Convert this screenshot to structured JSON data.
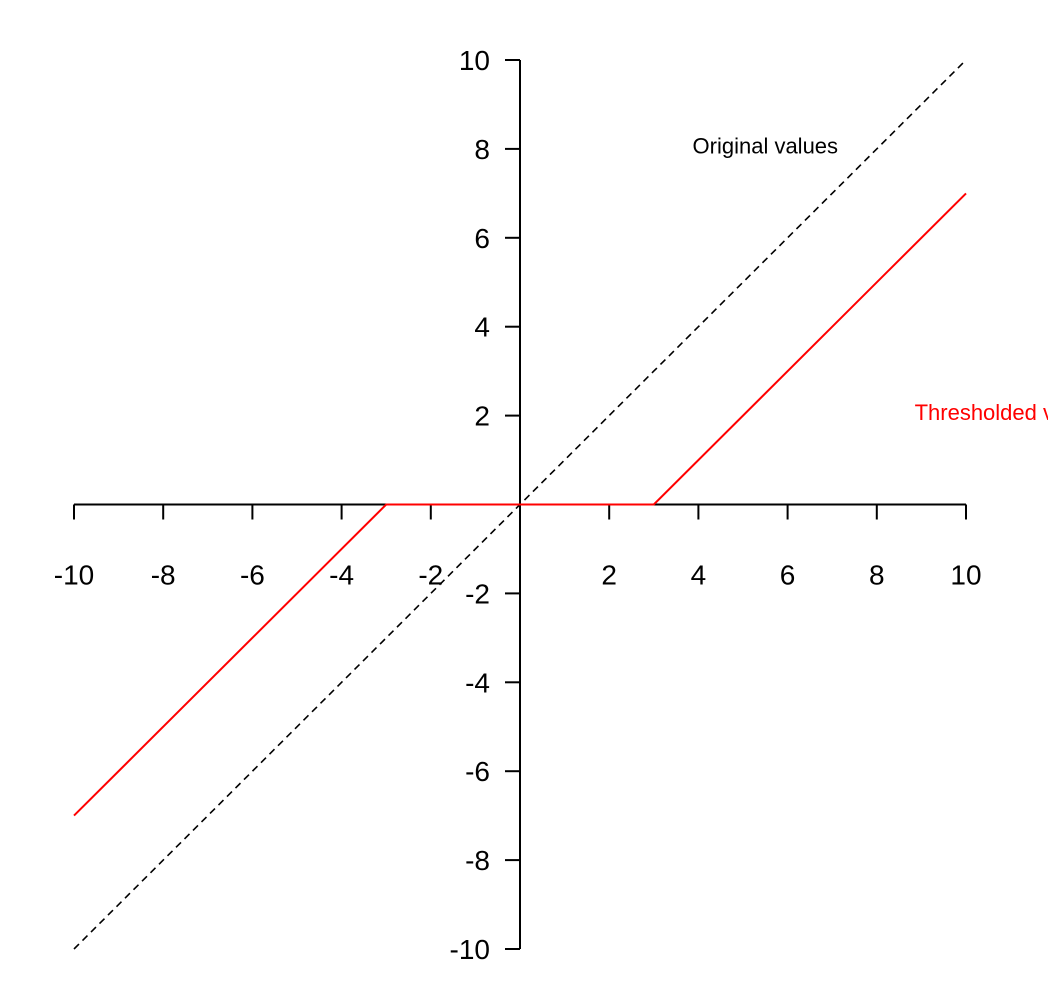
{
  "chart_data": {
    "type": "line",
    "title": "",
    "xlabel": "",
    "ylabel": "",
    "xlim": [
      -10,
      10
    ],
    "ylim": [
      -10,
      10
    ],
    "grid": false,
    "x_ticks": [
      "-10",
      "-8",
      "-6",
      "-4",
      "-2",
      "2",
      "4",
      "6",
      "8",
      "10"
    ],
    "y_ticks": [
      "10",
      "8",
      "6",
      "4",
      "2",
      "-2",
      "-4",
      "-6",
      "-8",
      "-10"
    ],
    "series": [
      {
        "name": "Original values",
        "color": "#000000",
        "style": "dashed",
        "x": [
          -10,
          -3,
          0,
          3,
          10
        ],
        "y": [
          -10,
          -3,
          0,
          3,
          10
        ]
      },
      {
        "name": "Thresholded values",
        "color": "#ff0000",
        "style": "solid",
        "x": [
          -10,
          -3,
          0,
          3,
          10
        ],
        "y": [
          -7,
          0,
          0,
          0,
          7
        ]
      }
    ],
    "annotations": [
      {
        "text": "Original values",
        "x": 5.5,
        "y": 7.9,
        "color": "#000000"
      },
      {
        "text": "Thresholded values",
        "x": 11,
        "y": 1.9,
        "color": "#ff0000"
      }
    ]
  }
}
